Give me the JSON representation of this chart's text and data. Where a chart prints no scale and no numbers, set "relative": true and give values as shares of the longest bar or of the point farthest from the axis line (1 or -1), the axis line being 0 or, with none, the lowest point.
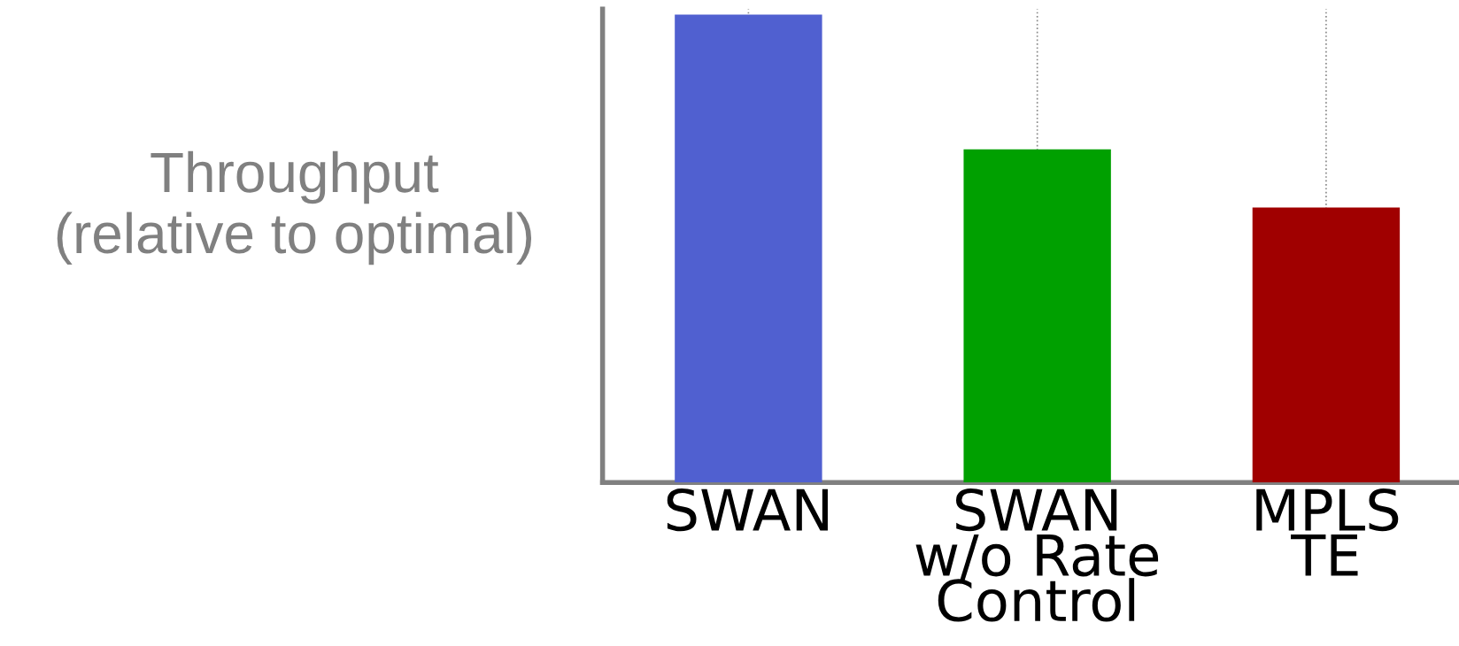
{
  "chart_data": {
    "type": "bar",
    "ylabel": "Throughput\n(relative to optimal)",
    "categories": [
      "SWAN",
      "SWAN\nw/o Rate\nControl",
      "MPLS\nTE"
    ],
    "values": [
      1,
      0.712,
      0.588
    ],
    "colors": [
      "#5060d0",
      "#00a000",
      "#a00000"
    ],
    "relative": true,
    "grid": "x"
  }
}
